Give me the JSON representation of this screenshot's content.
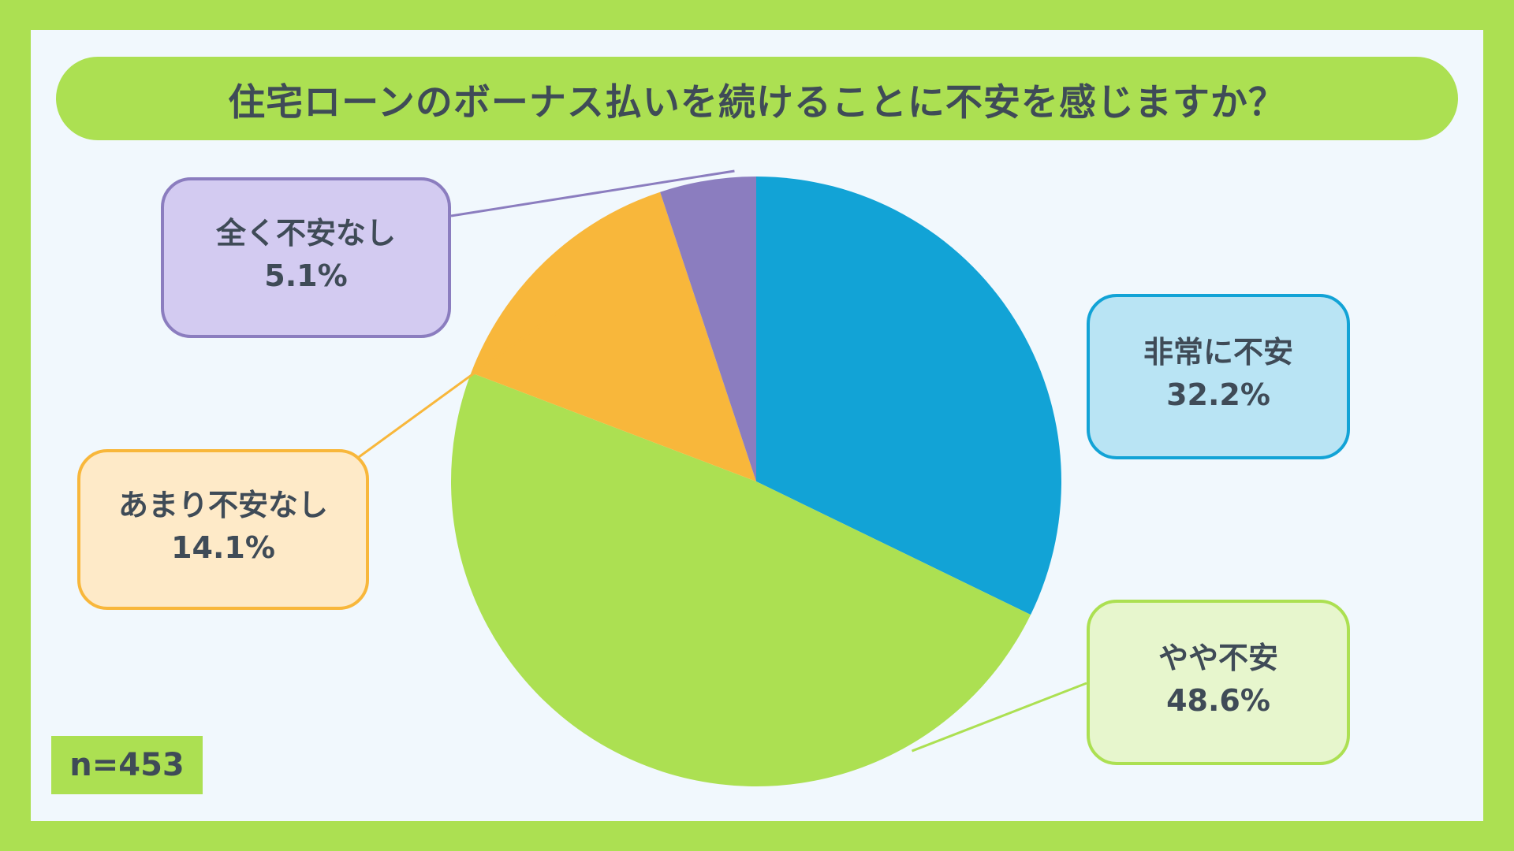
{
  "title": "住宅ローンのボーナス払いを続けることに不安を感じますか？",
  "sample_size_label": "n=453",
  "colors": {
    "background": "#ace052",
    "panel": "#f1f8fd",
    "text": "#3f4b57"
  },
  "chart_data": {
    "type": "pie",
    "title": "住宅ローンのボーナス払いを続けることに不安を感じますか？",
    "categories": [
      "非常に不安",
      "やや不安",
      "あまり不安なし",
      "全く不安なし"
    ],
    "values": [
      32.2,
      48.6,
      14.1,
      5.1
    ],
    "value_labels": [
      "32.2%",
      "48.6%",
      "14.1%",
      "5.1%"
    ],
    "unit": "%",
    "start_angle": "12 o'clock",
    "direction": "clockwise",
    "colors": [
      "#12a3d6",
      "#ace052",
      "#f8b73b",
      "#8b7dbf"
    ],
    "label_fills": [
      "#b9e4f4",
      "#e7f6cd",
      "#feeac8",
      "#d3cbf1"
    ],
    "sample_size": 453
  }
}
